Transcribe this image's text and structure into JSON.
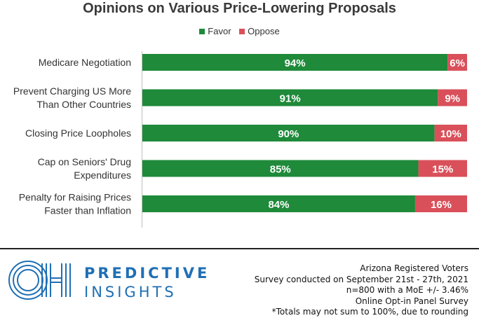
{
  "colors": {
    "favor": "#1e8a3a",
    "oppose": "#d9505a",
    "brand": "#1f6fb5"
  },
  "chart_data": {
    "type": "bar",
    "orientation": "horizontal",
    "stacked": true,
    "title": "Opinions on Various Price-Lowering Proposals",
    "legend_position": "top",
    "grid": false,
    "categories": [
      [
        "Medicare Negotiation"
      ],
      [
        "Prevent Charging US More",
        "Than Other Countries"
      ],
      [
        "Closing Price Loopholes"
      ],
      [
        "Cap on Seniors' Drug",
        "Expenditures"
      ],
      [
        "Penalty for Raising Prices",
        "Faster than Inflation"
      ]
    ],
    "series": [
      {
        "name": "Favor",
        "values": [
          94,
          91,
          90,
          85,
          84
        ],
        "labels": [
          "94%",
          "91%",
          "90%",
          "85%",
          "84%"
        ]
      },
      {
        "name": "Oppose",
        "values": [
          6,
          9,
          10,
          15,
          16
        ],
        "labels": [
          "6%",
          "9%",
          "10%",
          "15%",
          "16%"
        ]
      }
    ],
    "xlim": [
      0,
      100
    ]
  },
  "footer": {
    "brand_line1": "PREDICTIVE",
    "brand_line2": "INSIGHTS",
    "logo_icon": "oh-logo-icon",
    "notes": [
      "Arizona Registered Voters",
      "Survey conducted on September 21st - 27th, 2021",
      "n=800 with a MoE +/- 3.46%",
      "Online Opt-in Panel Survey",
      "*Totals may not sum to 100%, due to rounding"
    ]
  }
}
